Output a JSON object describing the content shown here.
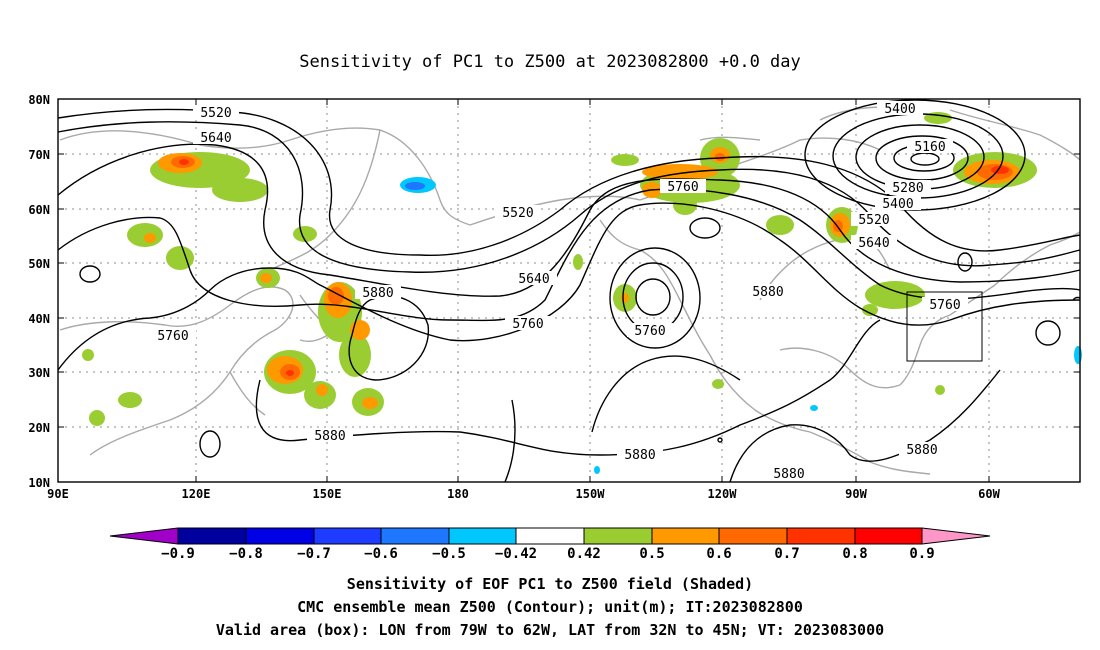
{
  "title": "Sensitivity of PC1 to Z500 at 2023082800 +0.0 day",
  "map": {
    "lon_labels": [
      "90E",
      "120E",
      "150E",
      "180",
      "150W",
      "120W",
      "90W",
      "60W"
    ],
    "lat_labels": [
      "80N",
      "70N",
      "60N",
      "50N",
      "40N",
      "30N",
      "20N",
      "10N"
    ],
    "contour_labels": [
      "5520",
      "5640",
      "5520",
      "5760",
      "5640",
      "5760",
      "5880",
      "5760",
      "5880",
      "5880",
      "5880",
      "5760",
      "5400",
      "5160",
      "5280",
      "5400",
      "5520",
      "5640",
      "5760",
      "5880",
      "5880"
    ],
    "box": {
      "lon": [
        -79,
        -62
      ],
      "lat": [
        32,
        45
      ]
    }
  },
  "colorbar": {
    "colors": [
      "#a000c8",
      "#0000a0",
      "#0000e6",
      "#1e3cff",
      "#1e78ff",
      "#00c8ff",
      "#ffffff",
      "#9acd32",
      "#ff9900",
      "#ff6a00",
      "#ff3200",
      "#ff0000",
      "#ff96c8"
    ],
    "labels": [
      "−0.9",
      "−0.8",
      "−0.7",
      "−0.6",
      "−0.5",
      "−0.42",
      "0.42",
      "0.5",
      "0.6",
      "0.7",
      "0.8",
      "0.9"
    ]
  },
  "caption": {
    "line1": "Sensitivity of EOF PC1 to Z500 field (Shaded)",
    "line2": "CMC ensemble mean Z500 (Contour); unit(m); IT:2023082800",
    "line3": "Valid area (box): LON from 79W to 62W, LAT from 32N to 45N; VT: 2023083000"
  }
}
